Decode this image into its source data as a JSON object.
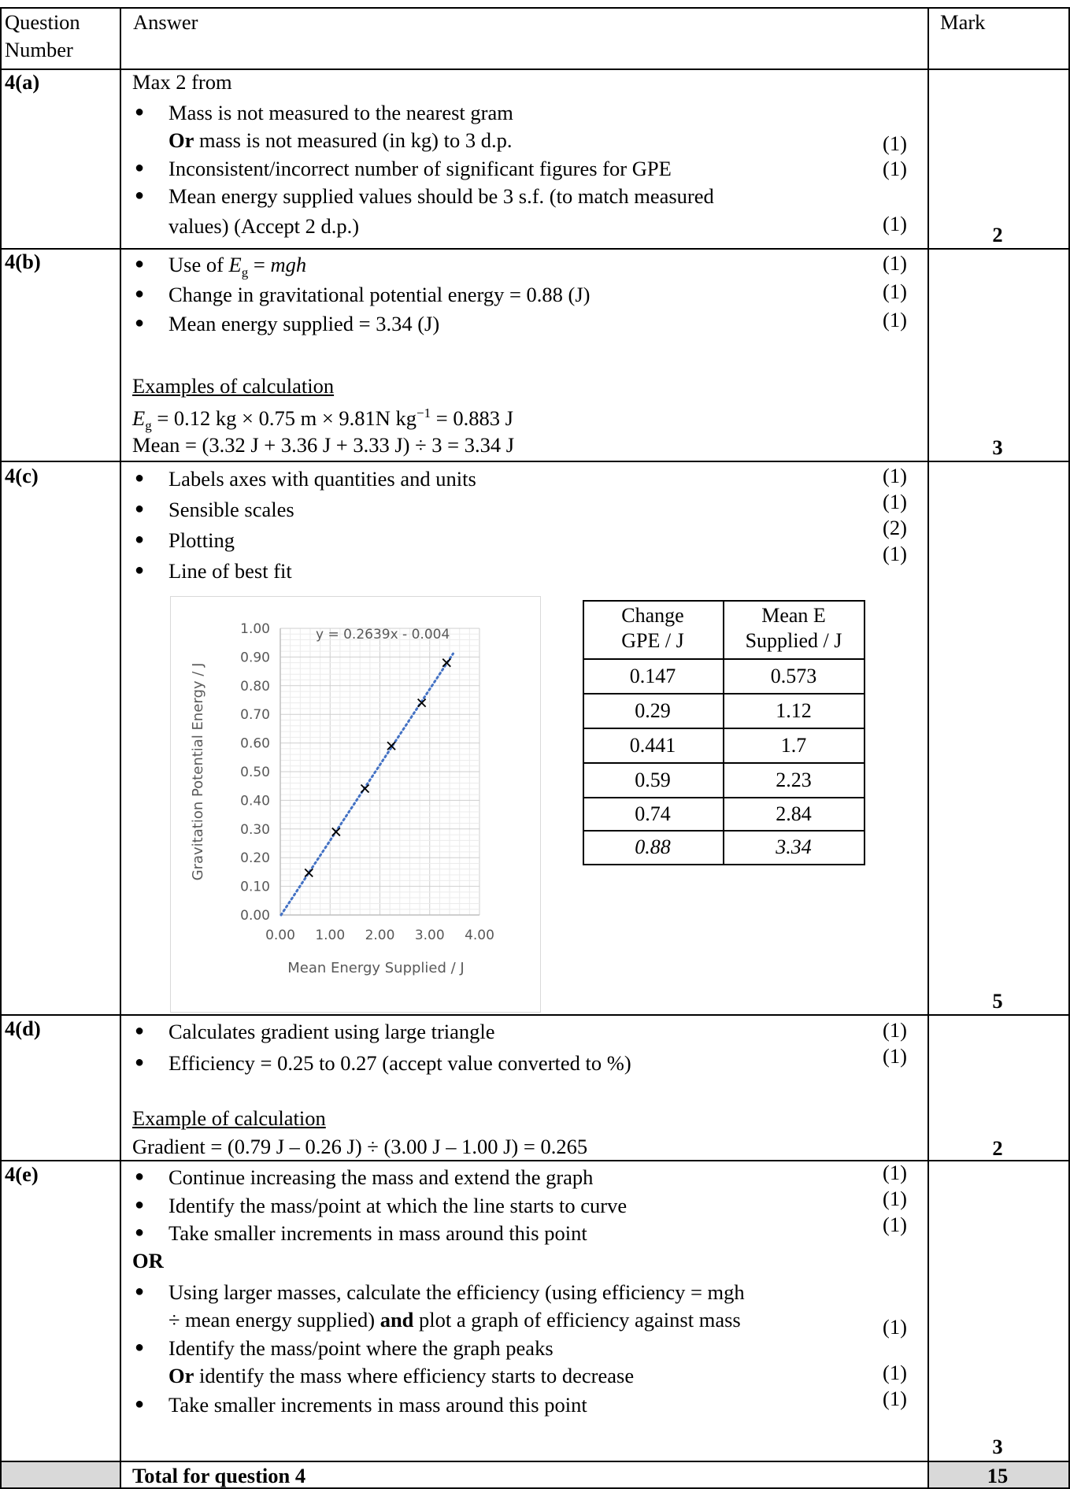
{
  "header": {
    "question_number": [
      "Question",
      "Number"
    ],
    "answer": "Answer",
    "mark": "Mark"
  },
  "q4a": {
    "num": "4(a)",
    "intro": "Max 2 from",
    "b1_l1": "Mass is not measured to the nearest gram",
    "b1_or": "Or",
    "b1_l2": " mass is not measured (in kg) to 3 d.p.",
    "b2": "Inconsistent/incorrect number of significant figures for GPE",
    "b3_l1": "Mean energy supplied values should be 3 s.f. (to match measured",
    "b3_l2": "values)  (Accept 2 d.p.)",
    "marks": [
      "(1)",
      "(1)",
      "(1)"
    ],
    "total": "2"
  },
  "q4b": {
    "num": "4(b)",
    "b1_pre": "Use of ",
    "b1_E": "E",
    "b1_sub": "g",
    "b1_eq": " = ",
    "b1_mgh": "mgh",
    "b2": "Change in gravitational potential energy = 0.88 (J)",
    "b3": "Mean energy supplied = 3.34 (J)",
    "ex_heading": "Examples of calculation",
    "calc1_E": "E",
    "calc1_sub": "g",
    "calc1_mid": " = 0.12 kg × 0.75 m × 9.81N kg",
    "calc1_sup": "−1",
    "calc1_end": " = 0.883 J",
    "calc2": "Mean = (3.32 J + 3.36 J + 3.33 J) ÷ 3 = 3.34 J",
    "marks": [
      "(1)",
      "(1)",
      "(1)"
    ],
    "total": "3"
  },
  "q4c": {
    "num": "4(c)",
    "b1": "Labels axes with quantities and units",
    "b2": "Sensible scales",
    "b3": "Plotting",
    "b4": "Line of best fit",
    "marks": [
      "(1)",
      "(1)",
      "(2)",
      "(1)"
    ],
    "total": "5",
    "table": {
      "head1": [
        "Change",
        "GPE / J"
      ],
      "head2": [
        "Mean E",
        "Supplied / J"
      ],
      "rows": [
        [
          "0.147",
          "0.573"
        ],
        [
          "0.29",
          "1.12"
        ],
        [
          "0.441",
          "1.7"
        ],
        [
          "0.59",
          "2.23"
        ],
        [
          "0.74",
          "2.84"
        ],
        [
          "0.88",
          "3.34"
        ]
      ]
    }
  },
  "q4d": {
    "num": "4(d)",
    "b1": "Calculates gradient using large triangle",
    "b2": "Efficiency = 0.25 to 0.27 (accept value converted to %)",
    "ex_heading": "Example of calculation",
    "calc": "Gradient = (0.79 J – 0.26 J) ÷ (3.00 J – 1.00 J) = 0.265",
    "marks": [
      "(1)",
      "(1)"
    ],
    "total": "2"
  },
  "q4e": {
    "num": "4(e)",
    "b1": "Continue increasing the mass and extend the graph",
    "b2": "Identify the mass/point at which the line starts to curve",
    "b3": "Take smaller increments in mass around this point",
    "or": "OR",
    "b4_l1": "Using larger masses, calculate the efficiency (using efficiency = mgh",
    "b4_l2a": "÷ mean energy supplied) ",
    "b4_and": "and",
    "b4_l2b": " plot a graph of efficiency against mass",
    "b5_l1": "Identify the mass/point where the graph peaks",
    "b5_or": "Or",
    "b5_l2": " identify the mass where efficiency starts to decrease",
    "b6": "Take smaller increments in mass around this point",
    "marks": [
      "(1)",
      "(1)",
      "(1)",
      "(1)",
      "(1)",
      "(1)"
    ],
    "total": "3"
  },
  "footer": {
    "label": "Total for question 4",
    "total": "15"
  },
  "chart_data": {
    "type": "scatter",
    "title": "",
    "trendline_label": "y = 0.2639x - 0.004",
    "trendline": {
      "slope": 0.2639,
      "intercept": -0.004
    },
    "xlabel": "Mean Energy Supplied / J",
    "ylabel": "Gravitation Potential Energy / J",
    "xlim": [
      0,
      4
    ],
    "ylim": [
      0,
      1
    ],
    "xticks": [
      "0.00",
      "1.00",
      "2.00",
      "3.00",
      "4.00"
    ],
    "yticks": [
      "0.00",
      "0.10",
      "0.20",
      "0.30",
      "0.40",
      "0.50",
      "0.60",
      "0.70",
      "0.80",
      "0.90",
      "1.00"
    ],
    "grid": true,
    "series": [
      {
        "x": [
          0.573,
          1.12,
          1.7,
          2.23,
          2.84,
          3.34
        ],
        "y": [
          0.147,
          0.29,
          0.441,
          0.59,
          0.74,
          0.88
        ]
      }
    ],
    "colors": {
      "trendline": "#4472c4",
      "grid": "#d9d9d9",
      "text": "#595959"
    }
  }
}
